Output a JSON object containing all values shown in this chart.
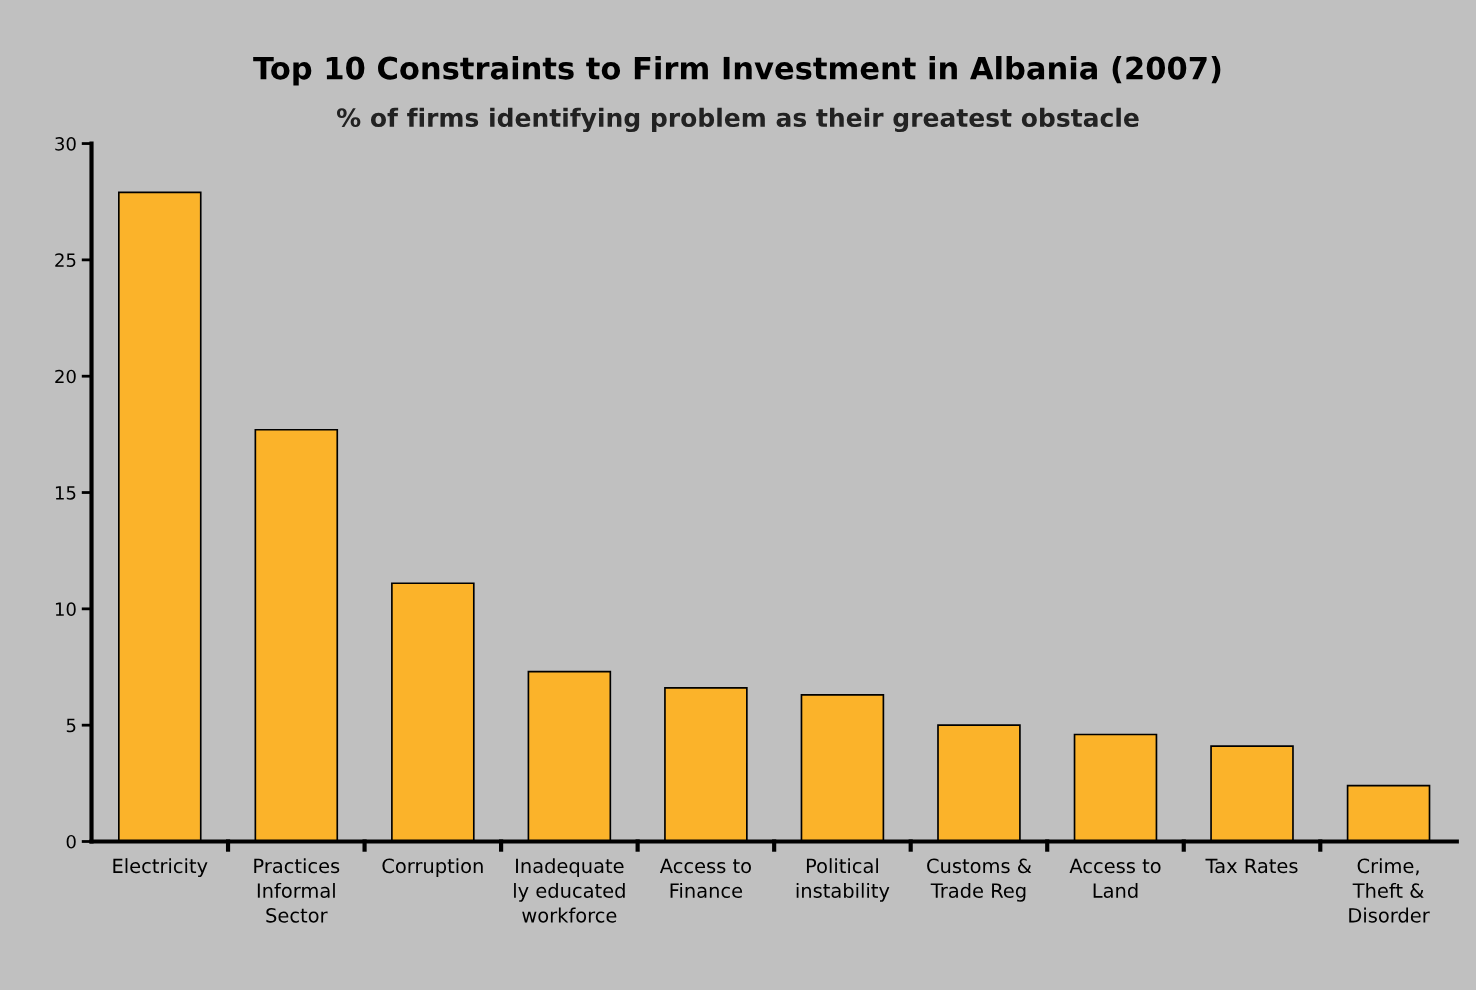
{
  "chart_data": {
    "type": "bar",
    "title": "Top 10 Constraints to Firm Investment in Albania (2007)",
    "subtitle": "% of firms identifying problem as their greatest obstacle",
    "categories": [
      "Electricity",
      "Practices\nInformal\nSector",
      "Corruption",
      "Inadequate\nly educated\nworkforce",
      "Access to\nFinance",
      "Political\ninstability",
      "Customs &\nTrade Reg",
      "Access to\nLand",
      "Tax Rates",
      "Crime,\nTheft &\nDisorder"
    ],
    "values": [
      27.9,
      17.7,
      11.1,
      7.3,
      6.6,
      6.3,
      5.0,
      4.6,
      4.1,
      2.4
    ],
    "color": "#fbb32a",
    "ylim": [
      0,
      30
    ],
    "yticks": [
      0,
      5,
      10,
      15,
      20,
      25,
      30
    ],
    "grid": false,
    "legend": false
  }
}
